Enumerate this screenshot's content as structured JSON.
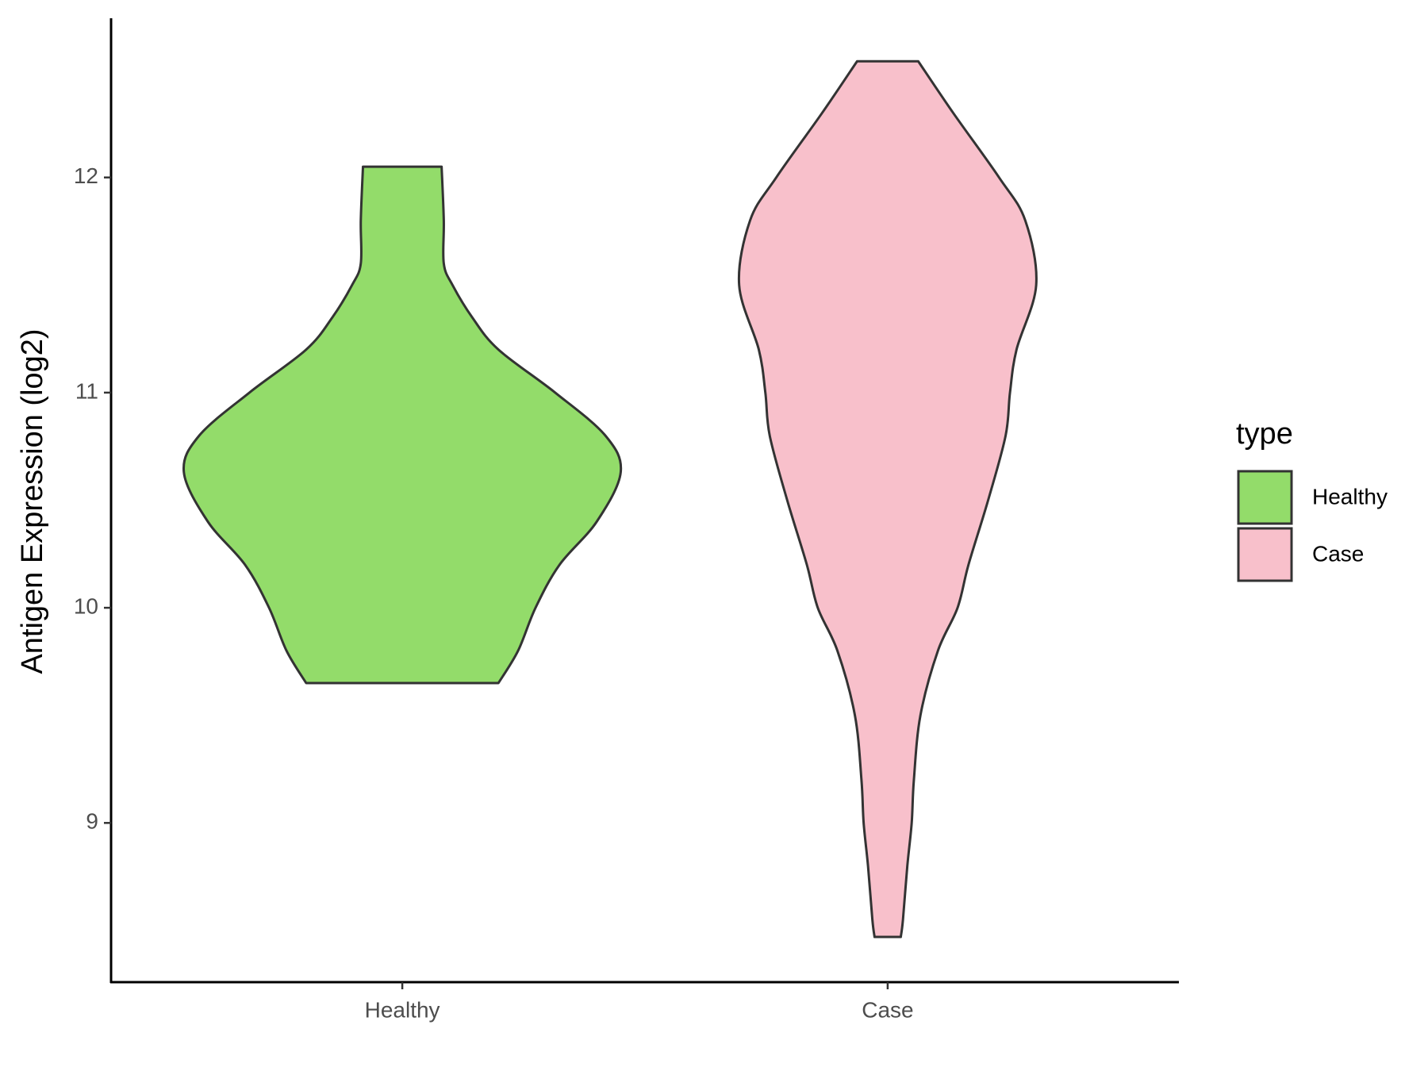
{
  "chart_data": {
    "type": "violin",
    "y_label": "Antigen Expression (log2)",
    "categories": [
      "Healthy",
      "Case"
    ],
    "legend_title": "type",
    "legend_position": "right",
    "ylim": [
      8.26,
      12.74
    ],
    "yticks": [
      9,
      10,
      11,
      12
    ],
    "grid": false,
    "series": [
      {
        "name": "Healthy",
        "color": "#93dc6a",
        "y": [
          12.05,
          11.8,
          11.6,
          11.5,
          11.35,
          11.2,
          11.0,
          10.8,
          10.63,
          10.4,
          10.2,
          10.0,
          9.8,
          9.65
        ],
        "density": [
          0.18,
          0.19,
          0.19,
          0.23,
          0.32,
          0.44,
          0.7,
          0.93,
          1.0,
          0.89,
          0.72,
          0.61,
          0.53,
          0.44
        ]
      },
      {
        "name": "Case",
        "color": "#f8c0cb",
        "y": [
          12.54,
          12.3,
          12.0,
          11.8,
          11.5,
          11.2,
          11.0,
          10.8,
          10.5,
          10.2,
          10.0,
          9.8,
          9.5,
          9.2,
          9.0,
          8.8,
          8.55,
          8.47
        ],
        "density": [
          0.14,
          0.3,
          0.51,
          0.63,
          0.68,
          0.59,
          0.56,
          0.54,
          0.46,
          0.37,
          0.32,
          0.23,
          0.15,
          0.12,
          0.11,
          0.09,
          0.07,
          0.06
        ]
      }
    ]
  }
}
